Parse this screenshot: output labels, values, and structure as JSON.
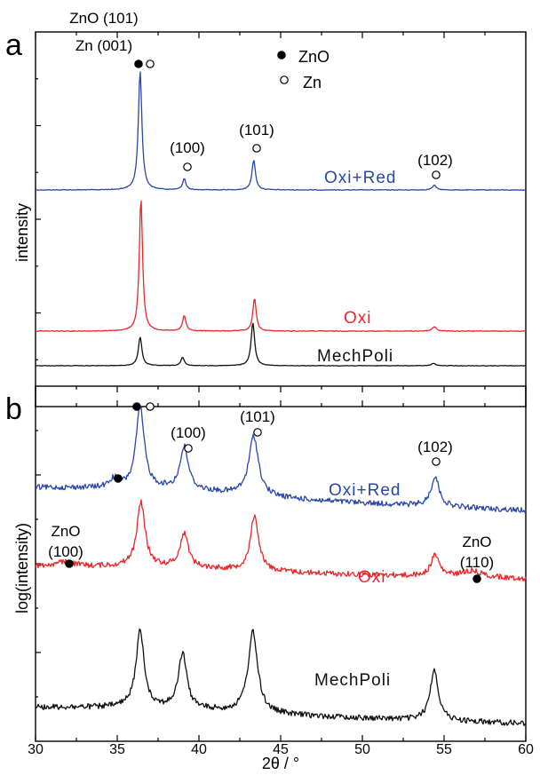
{
  "chart_data": [
    {
      "panel": "a",
      "type": "line",
      "xlabel": "2θ / °",
      "ylabel": "intensity",
      "xlim": [
        30,
        60
      ],
      "x_ticks": [
        30,
        35,
        40,
        45,
        50,
        55,
        60
      ],
      "series": [
        {
          "name": "Oxi+Red",
          "color": "#2a47a8",
          "peaks": [
            {
              "x": 36.4,
              "height": 0.64,
              "width": 0.13
            },
            {
              "x": 39.1,
              "height": 0.06,
              "width": 0.12
            },
            {
              "x": 43.35,
              "height": 0.16,
              "width": 0.13
            },
            {
              "x": 54.4,
              "height": 0.025,
              "width": 0.15
            }
          ]
        },
        {
          "name": "Oxi",
          "color": "#e8262a",
          "peaks": [
            {
              "x": 36.45,
              "height": 0.6,
              "width": 0.12
            },
            {
              "x": 39.1,
              "height": 0.07,
              "width": 0.12
            },
            {
              "x": 43.4,
              "height": 0.15,
              "width": 0.12
            },
            {
              "x": 54.4,
              "height": 0.02,
              "width": 0.15
            }
          ]
        },
        {
          "name": "MechPoli",
          "color": "#111111",
          "peaks": [
            {
              "x": 36.4,
              "height": 0.12,
              "width": 0.13
            },
            {
              "x": 39.0,
              "height": 0.035,
              "width": 0.12
            },
            {
              "x": 43.3,
              "height": 0.18,
              "width": 0.13
            },
            {
              "x": 54.35,
              "height": 0.01,
              "width": 0.15
            }
          ]
        }
      ],
      "legend": [
        {
          "symbol": "filled-circle",
          "label": "ZnO"
        },
        {
          "symbol": "open-circle",
          "label": "Zn"
        }
      ],
      "annotations": [
        {
          "text": "ZnO (101)",
          "x": 36.4
        },
        {
          "text": "Zn (001)",
          "x": 36.4
        },
        {
          "text": "(100)",
          "x": 39.1
        },
        {
          "text": "(101)",
          "x": 43.4
        },
        {
          "text": "(102)",
          "x": 54.4
        }
      ]
    },
    {
      "panel": "b",
      "type": "line",
      "xlabel": "2θ / °",
      "ylabel": "log(intensity)",
      "xlim": [
        30,
        60
      ],
      "x_ticks": [
        30,
        35,
        40,
        45,
        50,
        55,
        60
      ],
      "log_scale": true,
      "series": [
        {
          "name": "Oxi+Red",
          "color": "#2a47a8",
          "peaks": [
            {
              "x": 34.8,
              "height": 0.02,
              "width": 0.3
            },
            {
              "x": 36.4,
              "height": 0.19,
              "width": 0.3
            },
            {
              "x": 39.1,
              "height": 0.1,
              "width": 0.3
            },
            {
              "x": 43.35,
              "height": 0.14,
              "width": 0.35
            },
            {
              "x": 54.45,
              "height": 0.07,
              "width": 0.3
            }
          ]
        },
        {
          "name": "Oxi",
          "color": "#e8262a",
          "peaks": [
            {
              "x": 31.8,
              "height": 0.01,
              "width": 0.6
            },
            {
              "x": 36.45,
              "height": 0.15,
              "width": 0.3
            },
            {
              "x": 39.1,
              "height": 0.08,
              "width": 0.3
            },
            {
              "x": 43.4,
              "height": 0.13,
              "width": 0.3
            },
            {
              "x": 54.45,
              "height": 0.05,
              "width": 0.3
            },
            {
              "x": 56.7,
              "height": 0.015,
              "width": 0.8
            }
          ]
        },
        {
          "name": "MechPoli",
          "color": "#111111",
          "peaks": [
            {
              "x": 36.4,
              "height": 0.18,
              "width": 0.3
            },
            {
              "x": 39.0,
              "height": 0.13,
              "width": 0.3
            },
            {
              "x": 43.3,
              "height": 0.19,
              "width": 0.35
            },
            {
              "x": 54.4,
              "height": 0.12,
              "width": 0.3
            }
          ]
        }
      ],
      "annotations": [
        {
          "text": "(100)",
          "x": 39.1
        },
        {
          "text": "(101)",
          "x": 43.4
        },
        {
          "text": "(102)",
          "x": 54.45
        },
        {
          "text": "ZnO",
          "x": 31.8
        },
        {
          "text": "(100)",
          "x": 31.8
        },
        {
          "text": "ZnO",
          "x": 56.9
        },
        {
          "text": "(110)",
          "x": 56.9
        }
      ]
    }
  ],
  "panel_labels": [
    "a",
    "b"
  ]
}
